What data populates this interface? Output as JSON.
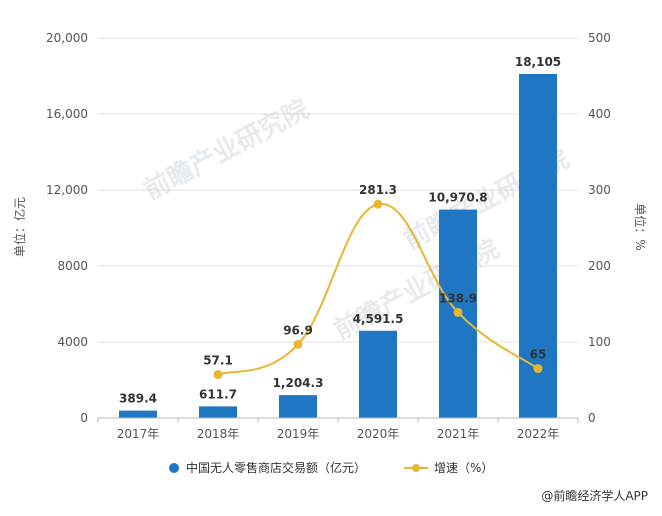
{
  "chart_data": {
    "type": "bar",
    "categories": [
      "2017年",
      "2018年",
      "2019年",
      "2020年",
      "2021年",
      "2022年"
    ],
    "series": [
      {
        "name": "中国无人零售商店交易额（亿元）",
        "kind": "bar",
        "axis": "left",
        "color": "#1f77c4",
        "values": [
          389.4,
          611.7,
          1204.3,
          4591.5,
          10970.8,
          18105
        ],
        "labels": [
          "389.4",
          "611.7",
          "1,204.3",
          "4,591.5",
          "10,970.8",
          "18,105"
        ]
      },
      {
        "name": "增速（%）",
        "kind": "line",
        "axis": "right",
        "color": "#e8b632",
        "values": [
          null,
          57.1,
          96.9,
          281.3,
          138.9,
          65
        ],
        "labels": [
          "",
          "57.1",
          "96.9",
          "281.3",
          "138.9",
          "65"
        ]
      }
    ],
    "y_left": {
      "label": "单位：亿元",
      "min": 0,
      "max": 20000,
      "ticks": [
        0,
        4000,
        8000,
        12000,
        16000,
        20000
      ],
      "tick_labels": [
        "0",
        "4000",
        "8000",
        "12,000",
        "16,000",
        "20,000"
      ]
    },
    "y_right": {
      "label": "单位：%",
      "min": 0,
      "max": 500,
      "ticks": [
        0,
        100,
        200,
        300,
        400,
        500
      ],
      "tick_labels": [
        "0",
        "100",
        "200",
        "300",
        "400",
        "500"
      ]
    },
    "grid": true,
    "legend_position": "bottom"
  },
  "watermark": "前瞻产业研究院",
  "source": "@前瞻经济学人APP"
}
